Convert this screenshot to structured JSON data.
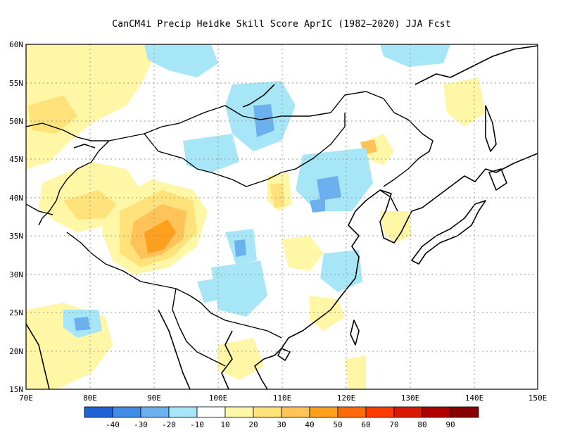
{
  "title": "CanCM4i Precip Heidke Skill Score AprIC (1982–2020) JJA Fcst",
  "map": {
    "lon_range": [
      70,
      150
    ],
    "lat_range": [
      15,
      60
    ],
    "lat_labels": [
      "15N",
      "20N",
      "25N",
      "30N",
      "35N",
      "40N",
      "45N",
      "50N",
      "55N",
      "60N"
    ],
    "lon_labels": [
      "70E",
      "80E",
      "90E",
      "100E",
      "110E",
      "120E",
      "130E",
      "140E",
      "150E"
    ],
    "gridlines": "dotted"
  },
  "colorbar": {
    "labels": [
      "-40",
      "-30",
      "-20",
      "-10",
      "10",
      "20",
      "30",
      "40",
      "50",
      "60",
      "70",
      "80",
      "90"
    ],
    "colors": [
      "#1f63d6",
      "#3d8ce6",
      "#6cb0f0",
      "#a6e6f6",
      "#ffffff",
      "#fff6a6",
      "#ffe27a",
      "#ffc35a",
      "#ff9f1c",
      "#ff6a0a",
      "#ff3a00",
      "#d81a00",
      "#b00000",
      "#860000"
    ]
  }
}
